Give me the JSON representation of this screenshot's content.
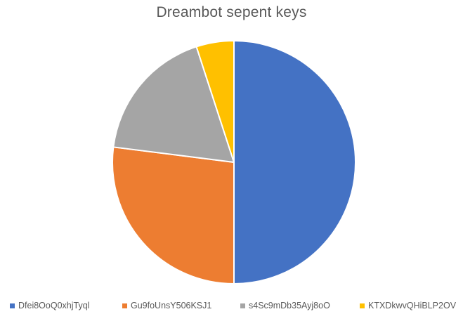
{
  "chart_data": {
    "type": "pie",
    "title": "Dreambot sepent keys",
    "categories": [
      "Dfei8OoQ0xhjTyql",
      "Gu9foUnsY506KSJ1",
      "s4Sc9mDb35Ayj8oO",
      "KTXDkwvQHiBLP2OV"
    ],
    "values": [
      50,
      27,
      18,
      5
    ],
    "colors": [
      "#4472C4",
      "#ED7D31",
      "#A5A5A5",
      "#FFC000"
    ],
    "legend_position": "bottom",
    "slice_border_color": "#FFFFFF"
  }
}
